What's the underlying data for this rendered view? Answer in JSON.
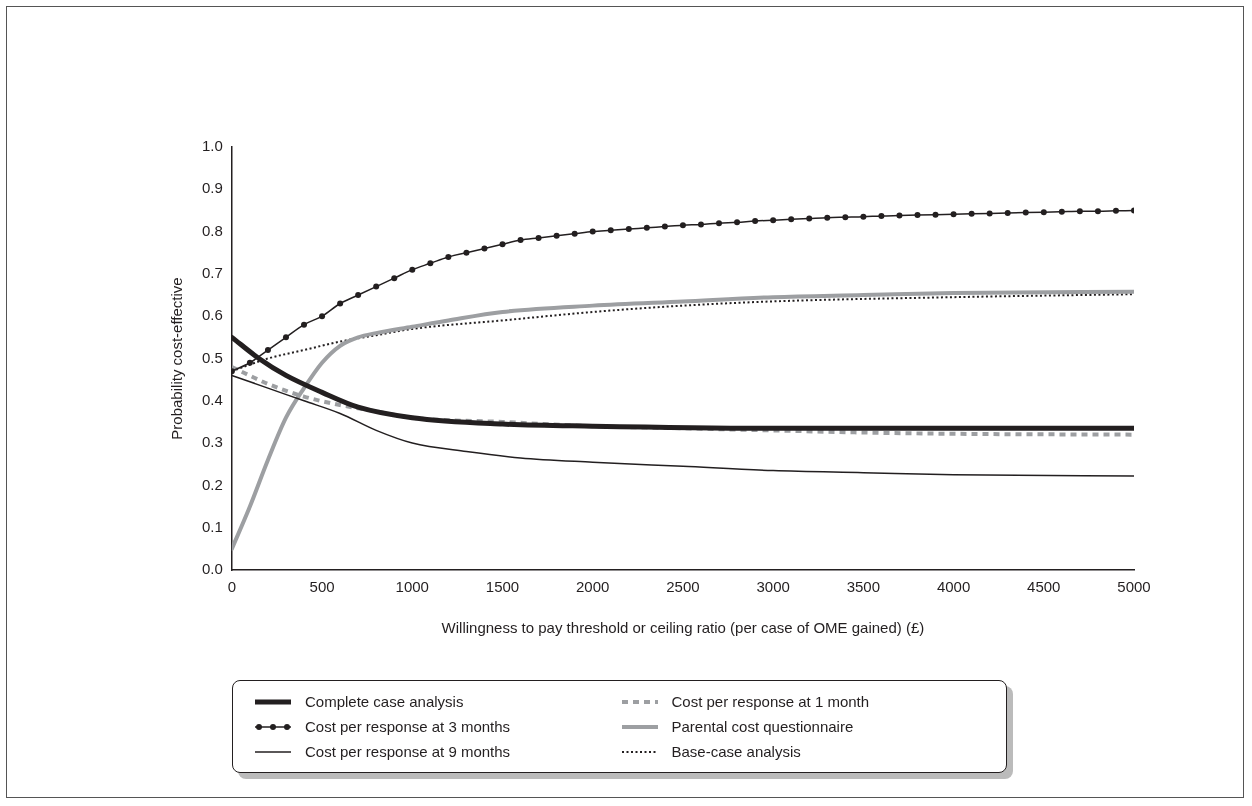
{
  "chart_data": {
    "type": "line",
    "xlabel": "Willingness to pay threshold or ceiling ratio (per case of OME gained) (£)",
    "ylabel": "Probability cost-effective",
    "xlim": [
      0,
      5000
    ],
    "xticks": [
      0,
      500,
      1000,
      1500,
      2000,
      2500,
      3000,
      3500,
      4000,
      4500,
      5000
    ],
    "ylim": [
      0,
      1
    ],
    "yticks": [
      {
        "value": 0,
        "label": "0.0"
      },
      0.1,
      0.2,
      0.3,
      0.4,
      0.5,
      0.6,
      0.7,
      0.8,
      0.9,
      {
        "value": 1,
        "label": "1.0"
      }
    ],
    "grid": false,
    "legend": "bottom",
    "series": [
      {
        "name": "Complete case analysis",
        "color": "#231f20",
        "line_style": "solid",
        "marker": "none",
        "x": [
          0,
          150,
          300,
          500,
          700,
          1000,
          1500,
          2000,
          3000,
          4000,
          5000
        ],
        "values": [
          0.55,
          0.5,
          0.46,
          0.42,
          0.385,
          0.36,
          0.345,
          0.34,
          0.335,
          0.335,
          0.335
        ]
      },
      {
        "name": "Cost per response at 3 months",
        "color": "#231f20",
        "line_style": "solid",
        "marker": "circle",
        "x": [
          0,
          100,
          200,
          300,
          400,
          500,
          600,
          700,
          800,
          900,
          1000,
          1100,
          1200,
          1300,
          1400,
          1500,
          1600,
          1700,
          1800,
          1900,
          2000,
          2100,
          2200,
          2300,
          2400,
          2500,
          2600,
          2700,
          2800,
          2900,
          3000,
          3100,
          3200,
          3300,
          3400,
          3500,
          3600,
          3700,
          3800,
          3900,
          4000,
          4100,
          4200,
          4300,
          4400,
          4500,
          4600,
          4700,
          4800,
          4900,
          5000
        ],
        "values": [
          0.47,
          0.49,
          0.52,
          0.55,
          0.58,
          0.6,
          0.63,
          0.65,
          0.67,
          0.69,
          0.71,
          0.725,
          0.74,
          0.75,
          0.76,
          0.77,
          0.78,
          0.785,
          0.79,
          0.795,
          0.8,
          0.803,
          0.806,
          0.809,
          0.812,
          0.815,
          0.817,
          0.82,
          0.822,
          0.825,
          0.827,
          0.829,
          0.831,
          0.833,
          0.834,
          0.835,
          0.837,
          0.838,
          0.839,
          0.84,
          0.841,
          0.842,
          0.843,
          0.844,
          0.845,
          0.846,
          0.847,
          0.848,
          0.848,
          0.849,
          0.85
        ]
      },
      {
        "name": "Cost per response at 9 months",
        "color": "#231f20",
        "line_style": "solid",
        "marker": "none",
        "x": [
          0,
          200,
          400,
          600,
          800,
          1000,
          1300,
          1600,
          2000,
          2500,
          3000,
          3500,
          4000,
          5000
        ],
        "values": [
          0.46,
          0.43,
          0.4,
          0.37,
          0.33,
          0.3,
          0.28,
          0.265,
          0.255,
          0.245,
          0.235,
          0.23,
          0.225,
          0.222
        ]
      },
      {
        "name": "Cost per response at 1 month",
        "color": "#9d9fa2",
        "line_style": "dashed",
        "marker": "none",
        "x": [
          0,
          200,
          400,
          600,
          800,
          1000,
          1500,
          2000,
          2500,
          3000,
          3500,
          4000,
          5000
        ],
        "values": [
          0.48,
          0.44,
          0.41,
          0.39,
          0.375,
          0.36,
          0.35,
          0.34,
          0.335,
          0.33,
          0.325,
          0.322,
          0.32
        ]
      },
      {
        "name": "Parental cost questionnaire",
        "color": "#9d9fa2",
        "line_style": "solid",
        "marker": "none",
        "x": [
          0,
          100,
          200,
          300,
          400,
          500,
          600,
          700,
          800,
          1000,
          1200,
          1500,
          2000,
          2500,
          3000,
          3500,
          4000,
          5000
        ],
        "values": [
          0.05,
          0.15,
          0.26,
          0.36,
          0.43,
          0.49,
          0.53,
          0.55,
          0.56,
          0.575,
          0.59,
          0.61,
          0.625,
          0.635,
          0.645,
          0.65,
          0.655,
          0.658
        ]
      },
      {
        "name": "Base-case analysis",
        "color": "#231f20",
        "line_style": "dotted",
        "marker": "none",
        "x": [
          0,
          200,
          400,
          600,
          800,
          1000,
          1500,
          2000,
          2500,
          3000,
          4000,
          5000
        ],
        "values": [
          0.47,
          0.5,
          0.52,
          0.54,
          0.555,
          0.57,
          0.59,
          0.61,
          0.625,
          0.635,
          0.645,
          0.652
        ]
      }
    ]
  }
}
